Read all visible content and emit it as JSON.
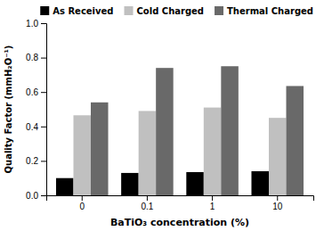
{
  "chart_data": {
    "type": "bar",
    "categories": [
      "0",
      "0.1",
      "1",
      "10"
    ],
    "series": [
      {
        "name": "As Received",
        "color": "#000000",
        "values": [
          0.1,
          0.13,
          0.135,
          0.14
        ]
      },
      {
        "name": "Cold Charged",
        "color": "#c0c0c0",
        "values": [
          0.465,
          0.49,
          0.51,
          0.45
        ]
      },
      {
        "name": "Thermal Charged",
        "color": "#696969",
        "values": [
          0.54,
          0.74,
          0.75,
          0.635
        ]
      }
    ],
    "xlabel": "BaTiO₃ concentration (%)",
    "ylabel": "Quality Factor (mmH₂O⁻¹)",
    "ylim": [
      0.0,
      1.0
    ],
    "yticks": [
      {
        "value": 0.0,
        "label": "0.0"
      },
      0.2,
      0.4,
      0.6,
      0.8,
      {
        "value": 1.0,
        "label": "1.0"
      }
    ],
    "grid": false,
    "legend": "upper right"
  }
}
